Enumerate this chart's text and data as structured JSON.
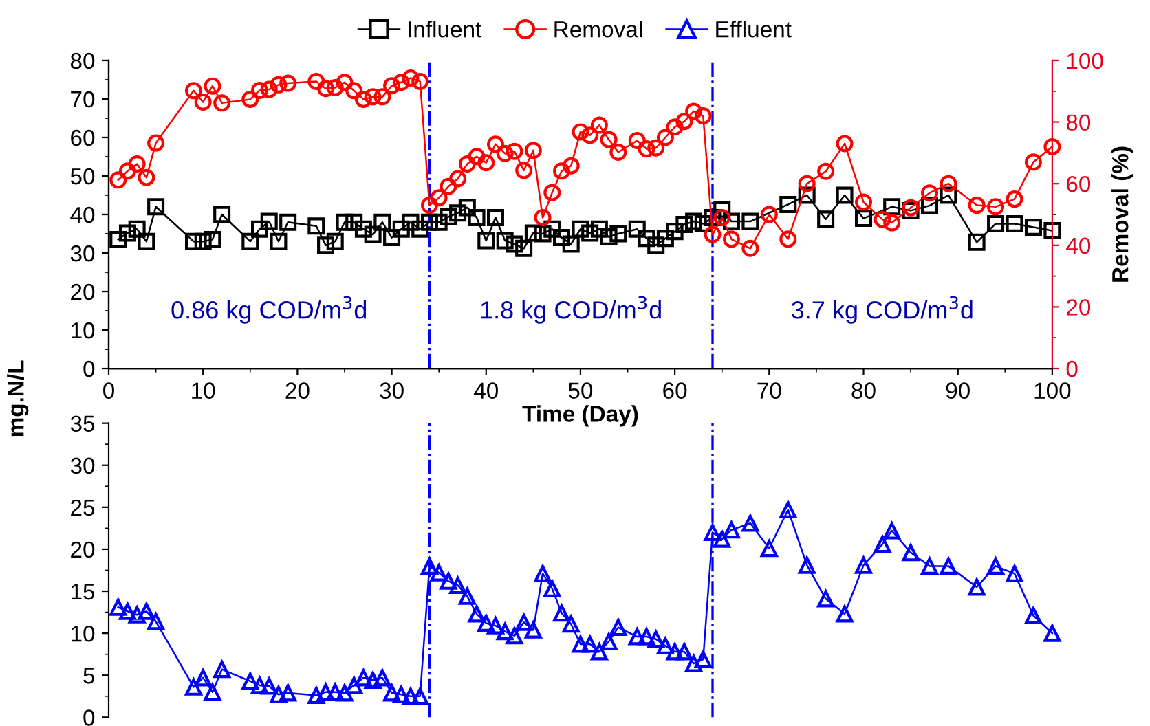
{
  "chart_data": [
    {
      "type": "line",
      "xlabel": "Time (Day)",
      "ylabel": "mg.N/L",
      "y2label": "Removal (%)",
      "legend": "top",
      "xlim": [
        0,
        100
      ],
      "xticks": [
        0,
        10,
        20,
        30,
        40,
        50,
        60,
        70,
        80,
        90,
        100
      ],
      "ylim": [
        0,
        80
      ],
      "yticks": [
        0,
        10,
        20,
        30,
        40,
        50,
        60,
        70,
        80
      ],
      "y2lim": [
        0,
        100
      ],
      "y2ticks": [
        0,
        20,
        40,
        60,
        80,
        100
      ],
      "series": [
        {
          "name": "Influent",
          "color": "#000000",
          "marker": "square",
          "x": [
            1,
            2,
            3,
            4,
            5,
            9,
            10,
            11,
            12,
            15,
            16,
            17,
            18,
            19,
            22,
            23,
            24,
            25,
            26,
            27,
            28,
            29,
            30,
            31,
            32,
            33,
            34,
            35,
            36,
            37,
            38,
            39,
            40,
            41,
            42,
            43,
            44,
            45,
            46,
            47,
            48,
            49,
            50,
            51,
            52,
            53,
            54,
            56,
            57,
            58,
            59,
            60,
            61,
            62,
            63,
            64,
            65,
            66,
            68,
            72,
            74,
            76,
            78,
            80,
            83,
            85,
            87,
            89,
            92,
            94,
            96,
            98,
            100
          ],
          "values": [
            33.5,
            35.2,
            36.2,
            33,
            42,
            33,
            33,
            33.5,
            40,
            33,
            36.2,
            38.2,
            33,
            38,
            37,
            32,
            33,
            38,
            38,
            36.2,
            34.8,
            38,
            34,
            36.2,
            38,
            36.2,
            38,
            38,
            39.4,
            40.4,
            41.8,
            39.2,
            33.2,
            39.2,
            33.2,
            32.3,
            31.2,
            35.2,
            35,
            36.2,
            34,
            32.3,
            36.2,
            35.2,
            36.2,
            34.2,
            35,
            36.2,
            33.8,
            32,
            33.8,
            35.6,
            37.4,
            38.2,
            37.6,
            39.2,
            41.2,
            38.2,
            38.2,
            42.6,
            45,
            38.8,
            45,
            39,
            42,
            41,
            42.3,
            45,
            32.8,
            37.6,
            37.6,
            36.7,
            35.8
          ]
        },
        {
          "name": "Removal",
          "color": "#ff0000",
          "marker": "circle",
          "axis": "y2",
          "x": [
            1,
            2,
            3,
            4,
            5,
            9,
            10,
            11,
            12,
            15,
            16,
            17,
            18,
            19,
            22,
            23,
            24,
            25,
            26,
            27,
            28,
            29,
            30,
            31,
            32,
            33,
            34,
            35,
            36,
            37,
            38,
            39,
            40,
            41,
            42,
            43,
            44,
            45,
            46,
            47,
            48,
            49,
            50,
            51,
            52,
            53,
            54,
            56,
            57,
            58,
            59,
            60,
            61,
            62,
            63,
            64,
            65,
            66,
            68,
            70,
            72,
            74,
            76,
            78,
            80,
            82,
            83,
            85,
            87,
            89,
            92,
            94,
            96,
            98,
            100
          ],
          "values": [
            61.2,
            64.1,
            66.4,
            62,
            73.2,
            90.2,
            86.5,
            91.7,
            86.2,
            87.4,
            90.3,
            90.6,
            92.1,
            92.6,
            93.2,
            90.9,
            91.2,
            92.9,
            90.2,
            87.4,
            88.2,
            88.2,
            91.8,
            92.9,
            94.3,
            93.2,
            53,
            55.4,
            59.1,
            61.6,
            66.4,
            68.8,
            66.8,
            72.8,
            69.8,
            70.5,
            64.3,
            70.8,
            49,
            57.1,
            64.1,
            65.8,
            76.8,
            75.7,
            79,
            74.3,
            70.2,
            74,
            71.3,
            71.6,
            75,
            78.4,
            80.2,
            83.5,
            82,
            43.5,
            49,
            42,
            39,
            50,
            42,
            60,
            64,
            73,
            54,
            48.4,
            47.3,
            52.2,
            57,
            60,
            53,
            52.5,
            55,
            67,
            72
          ]
        }
      ],
      "ref_lines": [
        {
          "axis": "x",
          "value": 34,
          "color": "#0000ff",
          "line_style": "dashdot"
        },
        {
          "axis": "x",
          "value": 64,
          "color": "#0000ff",
          "line_style": "dashdot"
        }
      ],
      "annotations": [
        "0.86 kg COD/m$^{3}$d",
        "1.8 kg COD/m$^{3}$d",
        "3.7 kg COD/m$^{3}$d"
      ]
    },
    {
      "type": "line",
      "tick_labels": "y",
      "xlim": [
        0,
        100
      ],
      "ylim": [
        0,
        35
      ],
      "yticks": [
        0,
        5,
        10,
        15,
        20,
        25,
        30,
        35
      ],
      "series": [
        {
          "name": "Effluent",
          "color": "#0000ff",
          "marker": "triangle",
          "x": [
            1,
            2,
            3,
            4,
            5,
            9,
            10,
            11,
            12,
            15,
            16,
            17,
            18,
            19,
            22,
            23,
            24,
            25,
            26,
            27,
            28,
            29,
            30,
            31,
            32,
            33,
            34,
            35,
            36,
            37,
            38,
            39,
            40,
            41,
            42,
            43,
            44,
            45,
            46,
            47,
            48,
            49,
            50,
            51,
            52,
            53,
            54,
            56,
            57,
            58,
            59,
            60,
            61,
            62,
            63,
            64,
            65,
            66,
            68,
            70,
            72,
            74,
            76,
            78,
            80,
            82,
            83,
            85,
            87,
            89,
            92,
            94,
            96,
            98,
            100
          ],
          "values": [
            13.1,
            12.6,
            12.2,
            12.6,
            11.4,
            3.6,
            4.7,
            3,
            5.7,
            4.3,
            3.8,
            3.7,
            2.7,
            2.9,
            2.6,
            3,
            3,
            2.9,
            3.8,
            4.7,
            4.4,
            4.7,
            2.9,
            2.7,
            2.5,
            2.5,
            18,
            17.2,
            16.2,
            15.7,
            14.4,
            12.3,
            11.2,
            10.9,
            10.2,
            9.7,
            11.3,
            10.4,
            17.1,
            15.3,
            12.4,
            11.1,
            8.7,
            8.7,
            7.8,
            9,
            10.7,
            9.6,
            9.6,
            9.3,
            8.5,
            7.8,
            7.8,
            6.4,
            6.9,
            22,
            21.2,
            22.3,
            23.1,
            20.1,
            24.7,
            18.1,
            14.1,
            12.3,
            18.1,
            20.6,
            22.2,
            19.6,
            18,
            18,
            15.5,
            18,
            17.1,
            12.1,
            10
          ]
        }
      ],
      "ref_lines": [
        {
          "axis": "x",
          "value": 34,
          "color": "#0000ff",
          "line_style": "dashdot"
        },
        {
          "axis": "x",
          "value": 64,
          "color": "#0000ff",
          "line_style": "dashdot"
        }
      ]
    }
  ]
}
